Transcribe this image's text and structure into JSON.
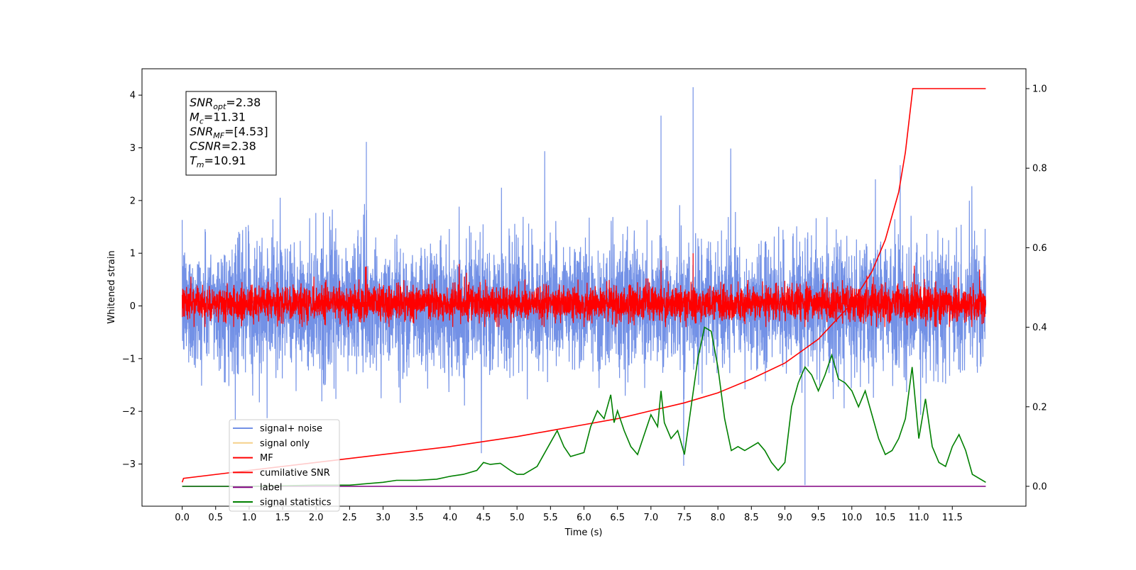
{
  "chart_data": {
    "type": "line",
    "xlabel": "Time (s)",
    "ylabel": "Whitened strain",
    "xlim": [
      -0.6,
      12.6
    ],
    "ylim": [
      -3.8,
      4.5
    ],
    "y2lim": [
      -0.05,
      1.05
    ],
    "x_ticks": [
      0.0,
      0.5,
      1.0,
      1.5,
      2.0,
      2.5,
      3.0,
      3.5,
      4.0,
      4.5,
      5.0,
      5.5,
      6.0,
      6.5,
      7.0,
      7.5,
      8.0,
      8.5,
      9.0,
      9.5,
      10.0,
      10.5,
      11.0,
      11.5
    ],
    "x_tick_labels": [
      "0.0",
      "0.5",
      "1.0",
      "1.5",
      "2.0",
      "2.5",
      "3.0",
      "3.5",
      "4.0",
      "4.5",
      "5.0",
      "5.5",
      "6.0",
      "6.5",
      "7.0",
      "7.5",
      "8.0",
      "8.5",
      "9.0",
      "9.5",
      "10.0",
      "10.5",
      "11.0",
      "11.5"
    ],
    "y_ticks": [
      -3,
      -2,
      -1,
      0,
      1,
      2,
      3,
      4
    ],
    "y_tick_labels": [
      "−3",
      "−2",
      "−1",
      "0",
      "1",
      "2",
      "3",
      "4"
    ],
    "y2_ticks": [
      0.0,
      0.2,
      0.4,
      0.6,
      0.8,
      1.0
    ],
    "y2_tick_labels": [
      "0.0",
      "0.2",
      "0.4",
      "0.6",
      "0.8",
      "1.0"
    ],
    "grid": false,
    "legend_position": "lower-left",
    "legend": [
      {
        "label": "signal+ noise",
        "color": "#7391e6"
      },
      {
        "label": "signal only",
        "color": "#f5d08a"
      },
      {
        "label": "MF",
        "color": "#ff0000"
      },
      {
        "label": "cumilative SNR",
        "color": "#ff0000"
      },
      {
        "label": "label",
        "color": "#800080"
      },
      {
        "label": "signal statistics",
        "color": "#008000"
      }
    ],
    "series": [
      {
        "name": "signal+ noise",
        "axis": "left",
        "color": "#7391e6",
        "kind": "noise",
        "x_range": [
          0.0,
          12.0
        ],
        "center": 0.0,
        "band": [
          -1.4,
          1.4
        ],
        "max_spike": 4.15,
        "min_spike": -3.4
      },
      {
        "name": "signal only",
        "axis": "left",
        "color": "#f5d08a",
        "kind": "flat",
        "x_range": [
          0.0,
          12.0
        ],
        "value": 0.0
      },
      {
        "name": "MF",
        "axis": "left",
        "color": "#ff0000",
        "kind": "noise",
        "x_range": [
          0.0,
          12.0
        ],
        "center": 0.0,
        "band": [
          -0.35,
          0.45
        ],
        "max_spike": 1.0,
        "min_spike": -0.4
      },
      {
        "name": "cumilative SNR",
        "axis": "right",
        "color": "#ff0000",
        "x": [
          0.0,
          0.02,
          1.0,
          2.0,
          3.0,
          4.0,
          5.0,
          5.5,
          6.0,
          6.5,
          7.0,
          7.5,
          8.0,
          8.5,
          9.0,
          9.5,
          10.0,
          10.3,
          10.5,
          10.7,
          10.8,
          10.91,
          12.0
        ],
        "y": [
          0.01,
          0.02,
          0.04,
          0.06,
          0.08,
          0.1,
          0.125,
          0.14,
          0.155,
          0.17,
          0.19,
          0.21,
          0.235,
          0.27,
          0.31,
          0.37,
          0.46,
          0.54,
          0.62,
          0.74,
          0.84,
          1.0,
          1.0
        ]
      },
      {
        "name": "label",
        "axis": "right",
        "color": "#800080",
        "x": [
          0.0,
          12.0
        ],
        "y": [
          0.0,
          0.0
        ]
      },
      {
        "name": "signal statistics",
        "axis": "right",
        "color": "#008000",
        "x": [
          0.0,
          1.0,
          2.0,
          2.5,
          3.0,
          3.2,
          3.5,
          3.8,
          4.0,
          4.2,
          4.4,
          4.5,
          4.6,
          4.75,
          4.9,
          5.0,
          5.1,
          5.3,
          5.5,
          5.6,
          5.7,
          5.8,
          5.9,
          6.0,
          6.1,
          6.2,
          6.3,
          6.4,
          6.45,
          6.5,
          6.6,
          6.7,
          6.8,
          6.9,
          7.0,
          7.1,
          7.15,
          7.2,
          7.3,
          7.4,
          7.5,
          7.6,
          7.7,
          7.8,
          7.9,
          8.0,
          8.1,
          8.2,
          8.3,
          8.4,
          8.5,
          8.6,
          8.7,
          8.8,
          8.9,
          9.0,
          9.1,
          9.2,
          9.3,
          9.4,
          9.5,
          9.6,
          9.7,
          9.8,
          9.9,
          10.0,
          10.1,
          10.2,
          10.3,
          10.4,
          10.5,
          10.6,
          10.7,
          10.8,
          10.9,
          11.0,
          11.1,
          11.2,
          11.3,
          11.4,
          11.5,
          11.6,
          11.7,
          11.8,
          12.0
        ],
        "y": [
          0.0,
          0.0,
          0.003,
          0.003,
          0.01,
          0.015,
          0.015,
          0.018,
          0.025,
          0.03,
          0.04,
          0.06,
          0.055,
          0.058,
          0.04,
          0.03,
          0.03,
          0.05,
          0.11,
          0.14,
          0.1,
          0.075,
          0.08,
          0.085,
          0.15,
          0.19,
          0.17,
          0.23,
          0.16,
          0.19,
          0.14,
          0.1,
          0.08,
          0.13,
          0.18,
          0.15,
          0.24,
          0.16,
          0.12,
          0.14,
          0.08,
          0.2,
          0.32,
          0.4,
          0.39,
          0.3,
          0.17,
          0.09,
          0.1,
          0.09,
          0.1,
          0.11,
          0.09,
          0.06,
          0.04,
          0.06,
          0.2,
          0.26,
          0.3,
          0.28,
          0.24,
          0.28,
          0.33,
          0.27,
          0.26,
          0.24,
          0.2,
          0.24,
          0.18,
          0.12,
          0.08,
          0.09,
          0.12,
          0.17,
          0.3,
          0.12,
          0.22,
          0.1,
          0.06,
          0.05,
          0.1,
          0.13,
          0.09,
          0.03,
          0.01
        ]
      }
    ]
  },
  "annotation": {
    "lines": [
      {
        "sym": "SNR",
        "sub": "opt",
        "value": "=2.38"
      },
      {
        "sym": "M",
        "sub": "c",
        "value": "=11.31"
      },
      {
        "sym": "SNR",
        "sub": "MF",
        "value": "=[4.53]"
      },
      {
        "sym": "CSNR",
        "sub": "",
        "value": "=2.38"
      },
      {
        "sym": "T",
        "sub": "m",
        "value": "=10.91"
      }
    ]
  }
}
